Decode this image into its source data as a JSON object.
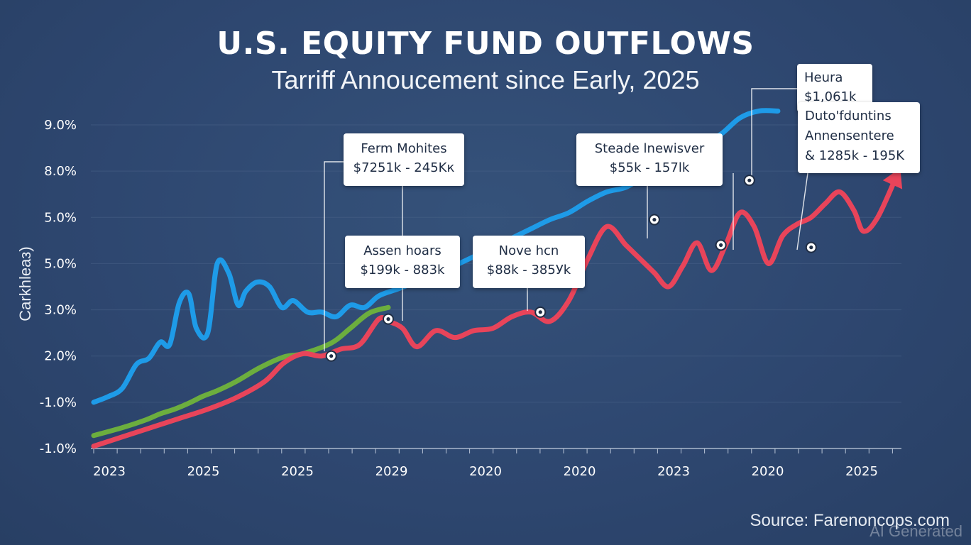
{
  "title": "U.S. EQUITY FUND OUTFLOWS",
  "subtitle": "Tarriff Annoucement since Early, 2025",
  "source": "Source: Farenoncops.com",
  "watermark": "AI Generated",
  "colors": {
    "background": "#2e4770",
    "blue": "#1e9be8",
    "green": "#6cae3e",
    "red": "#e8445a",
    "grid": "#4a6288",
    "axis": "#b8c4d6"
  },
  "chart_data": {
    "type": "line",
    "title": "U.S. EQUITY FUND OUTFLOWS",
    "subtitle": "Tarriff Annoucement since Early, 2025",
    "ylabel": "Carkhleaз)",
    "xlabel": "",
    "y_tick_labels": [
      "-1.0%",
      "-1.0%",
      "2.0%",
      "3.0%",
      "5.0%",
      "5.0%",
      "8.0%",
      "9.0%"
    ],
    "x_tick_labels": [
      "2023",
      "2025",
      "2025",
      "2029",
      "2020",
      "2020",
      "2023",
      "2020",
      "2025"
    ],
    "y_levels": [
      0,
      1,
      2,
      3,
      4,
      5,
      6,
      7
    ],
    "x_range": [
      0,
      8.5
    ],
    "series": [
      {
        "name": "blue",
        "color": "#1e9be8",
        "x": [
          0,
          0.15,
          0.3,
          0.45,
          0.58,
          0.7,
          0.8,
          0.9,
          1.0,
          1.08,
          1.2,
          1.3,
          1.42,
          1.52,
          1.6,
          1.72,
          1.85,
          1.98,
          2.1,
          2.25,
          2.4,
          2.55,
          2.7,
          2.85,
          3.0,
          3.2,
          3.4,
          3.6,
          3.8,
          4.0,
          4.2,
          4.4,
          4.6,
          4.8,
          5.0,
          5.2,
          5.4,
          5.6,
          5.8,
          6.0,
          6.2,
          6.4,
          6.6,
          6.8,
          7.0,
          7.2
        ],
        "y": [
          1.0,
          1.12,
          1.3,
          1.82,
          1.95,
          2.3,
          2.25,
          3.15,
          3.35,
          2.6,
          2.5,
          4.0,
          3.8,
          3.1,
          3.4,
          3.6,
          3.5,
          3.05,
          3.2,
          2.95,
          2.95,
          2.85,
          3.1,
          3.05,
          3.3,
          3.45,
          3.6,
          3.7,
          3.95,
          4.15,
          4.35,
          4.55,
          4.75,
          4.95,
          5.1,
          5.35,
          5.55,
          5.65,
          5.9,
          6.1,
          6.3,
          6.6,
          6.8,
          7.15,
          7.3,
          7.3
        ]
      },
      {
        "name": "green",
        "color": "#6cae3e",
        "x": [
          0,
          0.3,
          0.55,
          0.7,
          0.85,
          1.0,
          1.15,
          1.3,
          1.5,
          1.75,
          2.0,
          2.2,
          2.5,
          2.7,
          2.9,
          3.1
        ],
        "y": [
          0.28,
          0.45,
          0.62,
          0.75,
          0.85,
          0.98,
          1.13,
          1.25,
          1.45,
          1.75,
          1.98,
          2.05,
          2.28,
          2.6,
          2.93,
          3.05
        ]
      },
      {
        "name": "red",
        "color": "#e8445a",
        "x": [
          0,
          0.3,
          0.6,
          0.9,
          1.2,
          1.5,
          1.8,
          2.0,
          2.2,
          2.4,
          2.6,
          2.8,
          3.0,
          3.1,
          3.25,
          3.4,
          3.6,
          3.8,
          4.0,
          4.2,
          4.4,
          4.6,
          4.8,
          5.0,
          5.2,
          5.4,
          5.6,
          5.75,
          5.9,
          6.05,
          6.2,
          6.35,
          6.5,
          6.65,
          6.8,
          6.95,
          7.1,
          7.25,
          7.4,
          7.55,
          7.7,
          7.85,
          8.0,
          8.1,
          8.25,
          8.45
        ],
        "y": [
          0.05,
          0.25,
          0.45,
          0.65,
          0.85,
          1.1,
          1.45,
          1.85,
          2.05,
          2.0,
          2.15,
          2.25,
          2.8,
          2.75,
          2.6,
          2.2,
          2.55,
          2.4,
          2.55,
          2.6,
          2.85,
          2.95,
          2.75,
          3.2,
          4.1,
          4.8,
          4.4,
          4.1,
          3.8,
          3.5,
          3.95,
          4.45,
          3.85,
          4.4,
          5.1,
          4.8,
          4.0,
          4.6,
          4.85,
          5.0,
          5.3,
          5.55,
          5.15,
          4.7,
          5.0,
          5.9
        ]
      }
    ],
    "annotations": [
      {
        "title": "Ferm Mohites",
        "value": "$7251k - 245Kк",
        "x": 2.5,
        "y": 2.0
      },
      {
        "title": "Assen hoars",
        "value": "$199k - 883k",
        "x": 3.1,
        "y": 2.8
      },
      {
        "title": "Nove hcn",
        "value": "$88k - 385Уk",
        "x": 4.7,
        "y": 2.95
      },
      {
        "title": "Steade lnewisver",
        "value": "$55k - 157lk",
        "x": 5.9,
        "y": 4.95
      },
      {
        "title": "",
        "value": "",
        "x": 6.6,
        "y": 4.4
      },
      {
        "title": "Heura",
        "value": "$1,061k",
        "x": 6.9,
        "y": 5.8
      },
      {
        "title": "Duto'fduntins Annensentere",
        "value": "& 1285k - 195K",
        "x": 7.55,
        "y": 4.35
      }
    ]
  }
}
